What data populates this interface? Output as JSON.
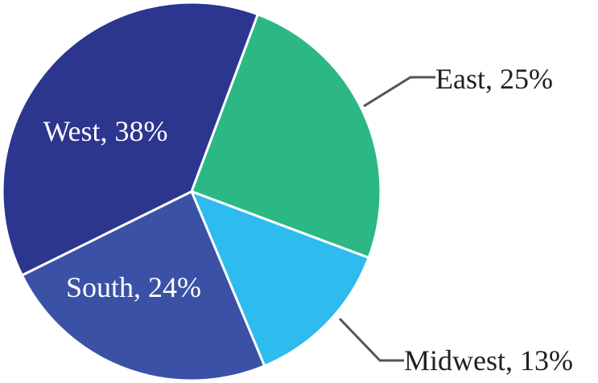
{
  "chart_data": {
    "type": "pie",
    "title": "",
    "slices": [
      {
        "label": "East",
        "value": 25,
        "color": "#2bb884",
        "text": "East, 25%"
      },
      {
        "label": "Midwest",
        "value": 13,
        "color": "#2ebbed",
        "text": "Midwest, 13%"
      },
      {
        "label": "South",
        "value": 24,
        "color": "#3b51a6",
        "text": "South, 24%"
      },
      {
        "label": "West",
        "value": 38,
        "color": "#2c368e",
        "text": "West, 38%"
      }
    ],
    "legend": "none",
    "label_placement": {
      "East": "outside",
      "Midwest": "outside",
      "South": "inside",
      "West": "inside"
    }
  }
}
